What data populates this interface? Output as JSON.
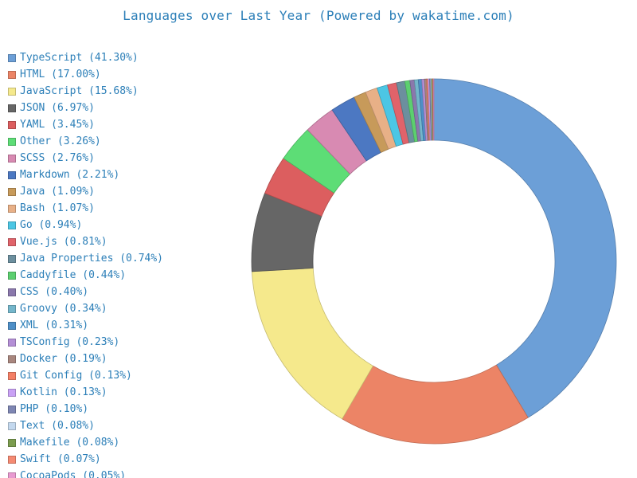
{
  "chart_data": {
    "type": "pie",
    "variant": "donut",
    "title": "Languages over Last Year (Powered by wakatime.com)",
    "legend_position": "left",
    "slices": [
      {
        "label": "TypeScript",
        "value": 41.3,
        "legend_text": "TypeScript (41.30%)",
        "color": "#6c9fd7"
      },
      {
        "label": "HTML",
        "value": 17.0,
        "legend_text": "HTML (17.00%)",
        "color": "#ec8466"
      },
      {
        "label": "JavaScript",
        "value": 15.68,
        "legend_text": "JavaScript (15.68%)",
        "color": "#f5e98c"
      },
      {
        "label": "JSON",
        "value": 6.97,
        "legend_text": "JSON (6.97%)",
        "color": "#666666"
      },
      {
        "label": "YAML",
        "value": 3.45,
        "legend_text": "YAML (3.45%)",
        "color": "#dc5e5f"
      },
      {
        "label": "Other",
        "value": 3.26,
        "legend_text": "Other (3.26%)",
        "color": "#5ddd76"
      },
      {
        "label": "SCSS",
        "value": 2.76,
        "legend_text": "SCSS (2.76%)",
        "color": "#d88ab2"
      },
      {
        "label": "Markdown",
        "value": 2.21,
        "legend_text": "Markdown (2.21%)",
        "color": "#4c78c2"
      },
      {
        "label": "Java",
        "value": 1.09,
        "legend_text": "Java (1.09%)",
        "color": "#c79a5a"
      },
      {
        "label": "Bash",
        "value": 1.07,
        "legend_text": "Bash (1.07%)",
        "color": "#e8b087"
      },
      {
        "label": "Go",
        "value": 0.94,
        "legend_text": "Go (0.94%)",
        "color": "#4cc6e4"
      },
      {
        "label": "Vue.js",
        "value": 0.81,
        "legend_text": "Vue.js (0.81%)",
        "color": "#e0636a"
      },
      {
        "label": "Java Properties",
        "value": 0.74,
        "legend_text": "Java Properties (0.74%)",
        "color": "#6c8f9e"
      },
      {
        "label": "Caddyfile",
        "value": 0.44,
        "legend_text": "Caddyfile (0.44%)",
        "color": "#5ccf6f"
      },
      {
        "label": "CSS",
        "value": 0.4,
        "legend_text": "CSS (0.40%)",
        "color": "#8a78ac"
      },
      {
        "label": "Groovy",
        "value": 0.34,
        "legend_text": "Groovy (0.34%)",
        "color": "#74b6cb"
      },
      {
        "label": "XML",
        "value": 0.31,
        "legend_text": "XML (0.31%)",
        "color": "#4e8fc7"
      },
      {
        "label": "TSConfig",
        "value": 0.23,
        "legend_text": "TSConfig (0.23%)",
        "color": "#b48fd6"
      },
      {
        "label": "Docker",
        "value": 0.19,
        "legend_text": "Docker (0.19%)",
        "color": "#a8867e"
      },
      {
        "label": "Git Config",
        "value": 0.13,
        "legend_text": "Git Config (0.13%)",
        "color": "#f47f65"
      },
      {
        "label": "Kotlin",
        "value": 0.13,
        "legend_text": "Kotlin (0.13%)",
        "color": "#c9a1f5"
      },
      {
        "label": "PHP",
        "value": 0.1,
        "legend_text": "PHP (0.10%)",
        "color": "#7e86b3"
      },
      {
        "label": "Text",
        "value": 0.08,
        "legend_text": "Text (0.08%)",
        "color": "#c3d8ee"
      },
      {
        "label": "Makefile",
        "value": 0.08,
        "legend_text": "Makefile (0.08%)",
        "color": "#7b9c4e"
      },
      {
        "label": "Swift",
        "value": 0.07,
        "legend_text": "Swift (0.07%)",
        "color": "#f58a72"
      },
      {
        "label": "CocoaPods",
        "value": 0.05,
        "legend_text": "CocoaPods (0.05%)",
        "color": "#e89ad0"
      }
    ]
  }
}
